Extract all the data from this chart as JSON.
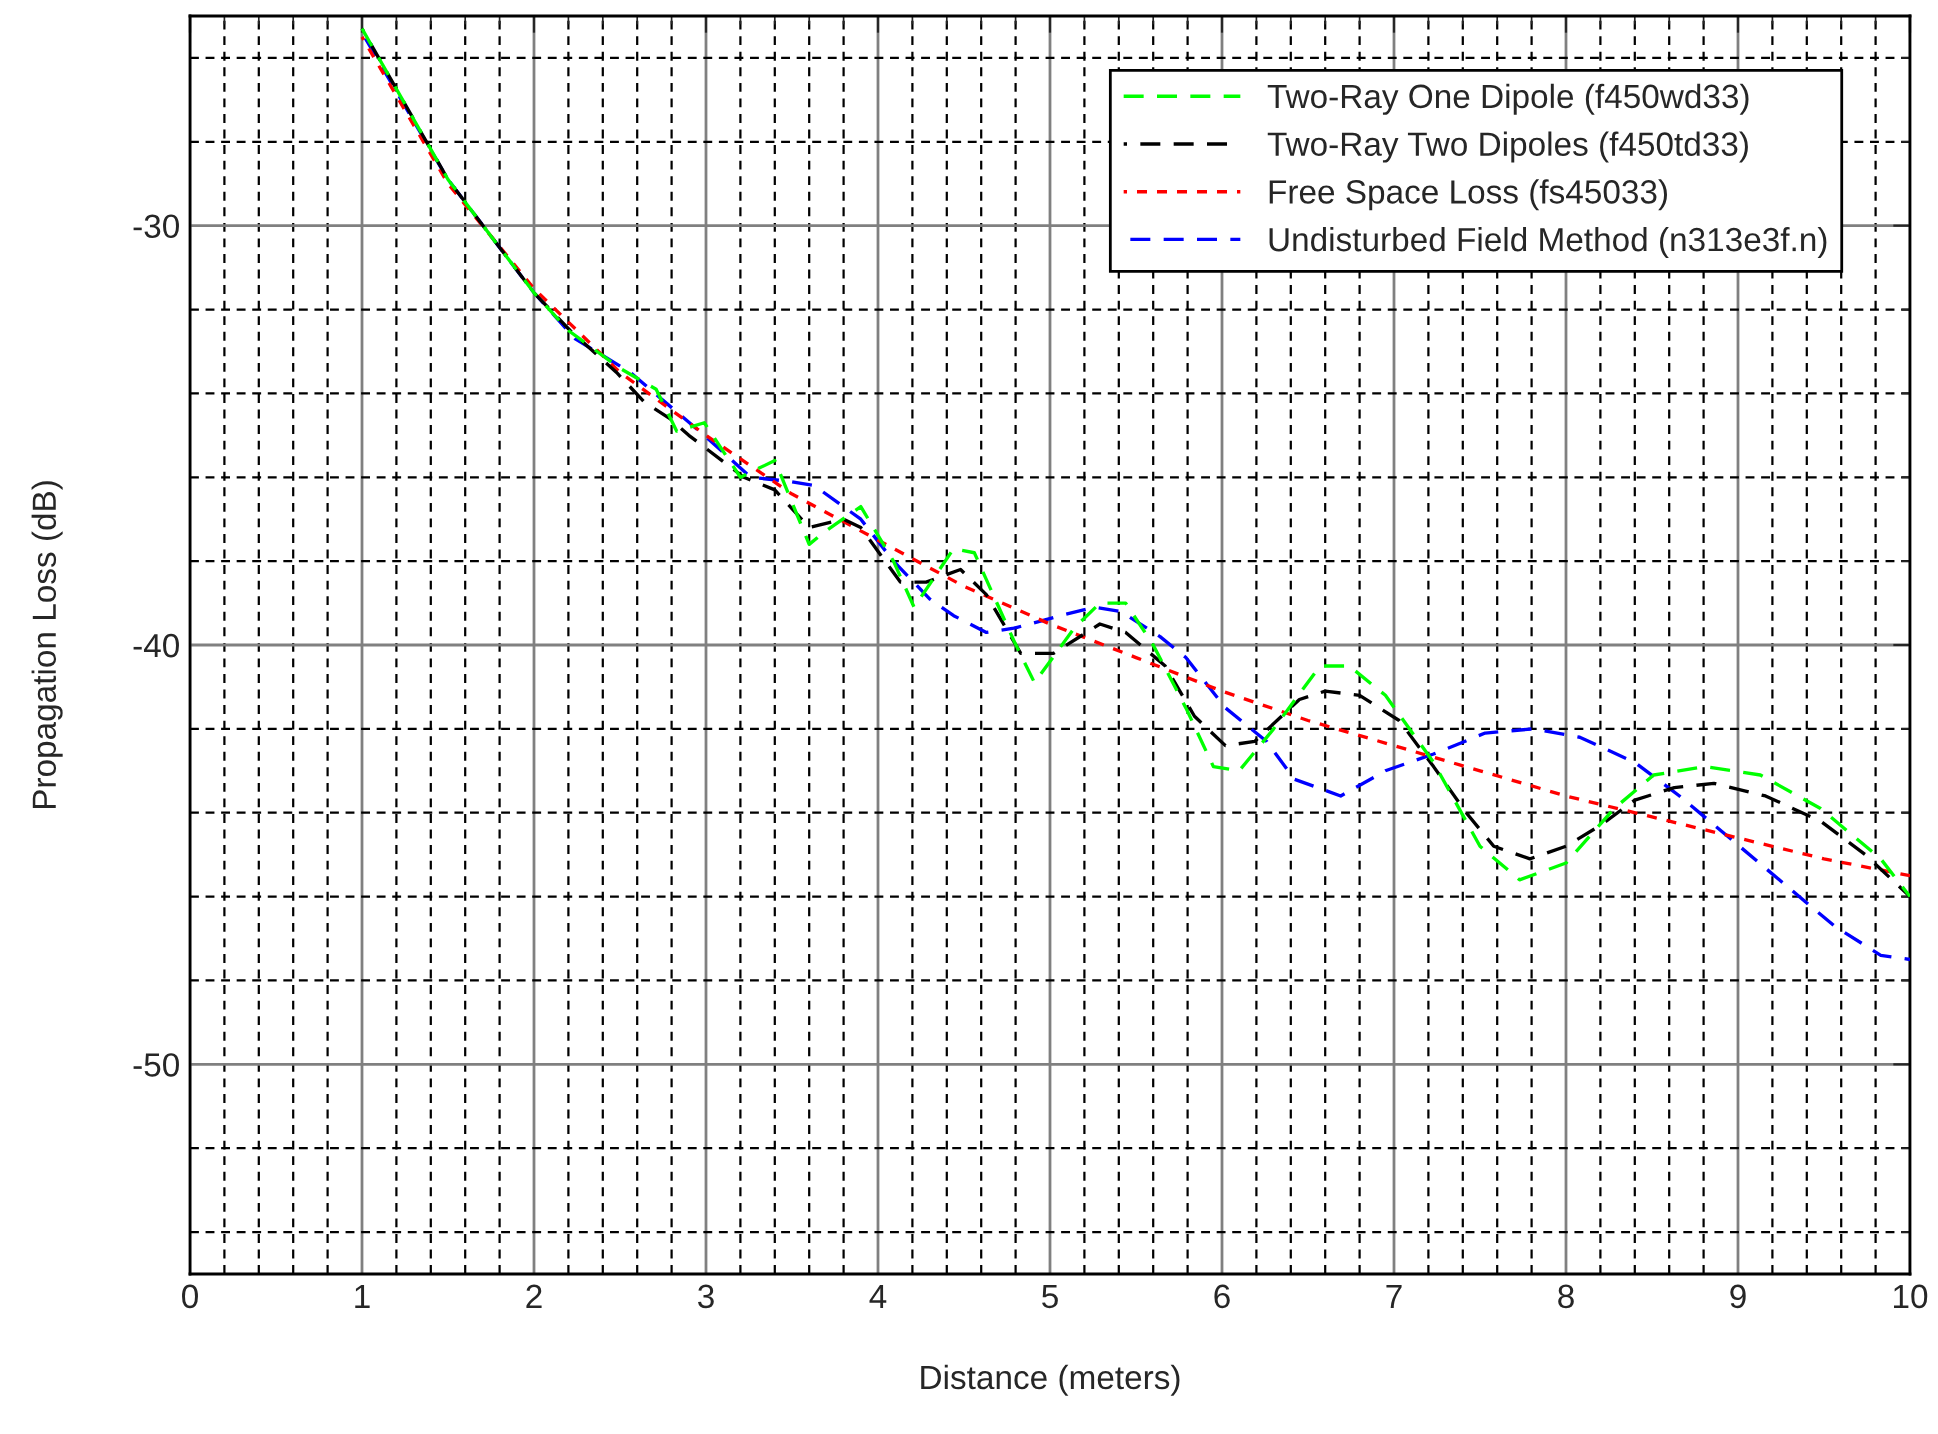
{
  "chart_data": {
    "type": "line",
    "xlabel": "Distance (meters)",
    "ylabel": "Propagation Loss (dB)",
    "xlim": [
      0,
      10
    ],
    "ylim": [
      -55,
      -25
    ],
    "xticks": [
      0,
      1,
      2,
      3,
      4,
      5,
      6,
      7,
      8,
      9,
      10
    ],
    "yticks": [
      {
        "value": -30,
        "label": "-30"
      },
      {
        "value": -40,
        "label": "-40"
      },
      {
        "value": -50,
        "label": "-50"
      }
    ],
    "grid": true,
    "legend": "top right",
    "series": [
      {
        "name": "Two-Ray One Dipole (f450wd33)",
        "color": "#00ff00",
        "line_style": "dashed",
        "x": [
          1,
          1.5,
          2,
          2.2,
          2.5,
          2.71,
          2.83,
          2.99,
          3.2,
          3.4,
          3.6,
          3.69,
          3.9,
          4.09,
          4.21,
          4.44,
          4.56,
          4.79,
          4.91,
          5.14,
          5.29,
          5.44,
          5.6,
          5.79,
          5.95,
          6.1,
          6.3,
          6.57,
          6.74,
          6.95,
          7.23,
          7.5,
          7.73,
          8.0,
          8.28,
          8.51,
          8.81,
          9.13,
          9.48,
          9.83,
          10
        ],
        "values": [
          -25.3,
          -28.9,
          -31.6,
          -32.5,
          -33.4,
          -33.9,
          -34.9,
          -34.7,
          -36.0,
          -35.6,
          -37.6,
          -37.3,
          -36.7,
          -38.0,
          -39.1,
          -37.7,
          -37.8,
          -39.9,
          -40.9,
          -39.6,
          -39.0,
          -39.0,
          -40.0,
          -41.5,
          -42.9,
          -43.0,
          -42.0,
          -40.5,
          -40.5,
          -41.2,
          -42.8,
          -44.8,
          -45.6,
          -45.2,
          -43.9,
          -43.1,
          -42.9,
          -43.1,
          -43.9,
          -45.1,
          -46.0
        ]
      },
      {
        "name": "Two-Ray Two Dipoles (f450td33)",
        "color": "#000000",
        "line_style": "dashed",
        "x": [
          1,
          1.5,
          2,
          2.21,
          2.48,
          2.64,
          2.79,
          2.9,
          3.22,
          3.4,
          3.6,
          3.8,
          3.9,
          4.13,
          4.28,
          4.48,
          4.63,
          4.83,
          5.02,
          5.29,
          5.44,
          5.67,
          5.84,
          6.02,
          6.19,
          6.45,
          6.6,
          6.8,
          7.03,
          7.23,
          7.42,
          7.58,
          7.79,
          8.0,
          8.2,
          8.4,
          8.63,
          8.86,
          9.16,
          9.48,
          9.74,
          10
        ],
        "values": [
          -25.3,
          -28.9,
          -31.6,
          -32.5,
          -33.5,
          -34.2,
          -34.6,
          -35.0,
          -36.0,
          -36.3,
          -37.2,
          -37.0,
          -37.2,
          -38.5,
          -38.5,
          -38.2,
          -38.8,
          -40.2,
          -40.2,
          -39.5,
          -39.7,
          -40.5,
          -41.7,
          -42.4,
          -42.3,
          -41.3,
          -41.1,
          -41.2,
          -41.8,
          -42.9,
          -44.0,
          -44.8,
          -45.1,
          -44.8,
          -44.3,
          -43.7,
          -43.4,
          -43.3,
          -43.6,
          -44.2,
          -45.0,
          -46.0
        ]
      },
      {
        "name": "Free Space Loss (fs45033)",
        "color": "#ff0000",
        "line_style": "dotted",
        "x": [
          1,
          1.5,
          2,
          2.5,
          3,
          3.5,
          4,
          4.5,
          5,
          5.5,
          6,
          6.5,
          7,
          7.5,
          8,
          8.5,
          9,
          9.5,
          10
        ],
        "values": [
          -25.5,
          -29.0,
          -31.5,
          -33.5,
          -35.0,
          -36.4,
          -37.5,
          -38.6,
          -39.5,
          -40.3,
          -41.1,
          -41.8,
          -42.4,
          -43.0,
          -43.6,
          -44.1,
          -44.6,
          -45.1,
          -45.5
        ]
      },
      {
        "name": "Undisturbed Field Method (n313e3f.n)",
        "color": "#0000ff",
        "line_style": "dashed",
        "x": [
          1,
          1.5,
          2,
          2.24,
          2.56,
          2.99,
          3.26,
          3.49,
          3.63,
          3.9,
          4.09,
          4.3,
          4.44,
          4.63,
          4.79,
          5.06,
          5.26,
          5.41,
          5.64,
          5.79,
          6.02,
          6.26,
          6.42,
          6.69,
          6.95,
          7.23,
          7.53,
          7.81,
          8.08,
          8.4,
          8.66,
          8.98,
          9.24,
          9.56,
          9.83,
          10
        ],
        "values": [
          -25.4,
          -28.9,
          -31.6,
          -32.7,
          -33.5,
          -35.0,
          -36.0,
          -36.1,
          -36.2,
          -37.0,
          -38.0,
          -38.9,
          -39.3,
          -39.7,
          -39.6,
          -39.3,
          -39.1,
          -39.2,
          -39.8,
          -40.3,
          -41.5,
          -42.3,
          -43.2,
          -43.6,
          -43.0,
          -42.6,
          -42.1,
          -42.0,
          -42.2,
          -42.8,
          -43.6,
          -44.7,
          -45.6,
          -46.7,
          -47.4,
          -47.5
        ]
      }
    ]
  }
}
